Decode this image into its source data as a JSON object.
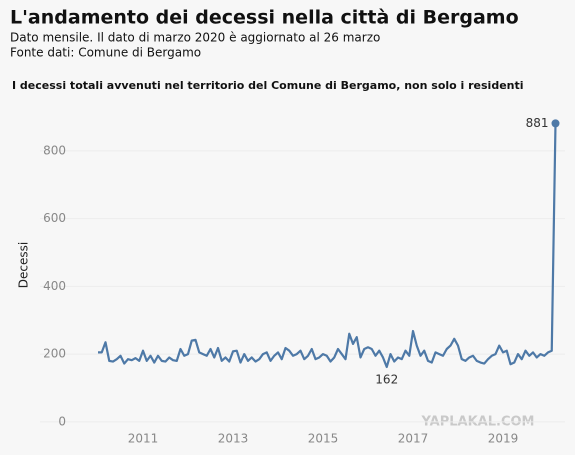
{
  "chart_data": {
    "type": "line",
    "title": "L'andamento dei decessi nella città di Bergamo",
    "subtitle": "Dato mensile. Il dato di marzo 2020 è aggiornato al 26 marzo",
    "source": "Fonte dati: Comune di Bergamo",
    "chart_title": "I decessi totali avvenuti nel territorio del Comune di Bergamo, non solo i residenti",
    "ylabel": "Decessi",
    "watermark": "YAPLAKAL.COM",
    "x": [
      "2010-01",
      "2010-02",
      "2010-03",
      "2010-04",
      "2010-05",
      "2010-06",
      "2010-07",
      "2010-08",
      "2010-09",
      "2010-10",
      "2010-11",
      "2010-12",
      "2011-01",
      "2011-02",
      "2011-03",
      "2011-04",
      "2011-05",
      "2011-06",
      "2011-07",
      "2011-08",
      "2011-09",
      "2011-10",
      "2011-11",
      "2011-12",
      "2012-01",
      "2012-02",
      "2012-03",
      "2012-04",
      "2012-05",
      "2012-06",
      "2012-07",
      "2012-08",
      "2012-09",
      "2012-10",
      "2012-11",
      "2012-12",
      "2013-01",
      "2013-02",
      "2013-03",
      "2013-04",
      "2013-05",
      "2013-06",
      "2013-07",
      "2013-08",
      "2013-09",
      "2013-10",
      "2013-11",
      "2013-12",
      "2014-01",
      "2014-02",
      "2014-03",
      "2014-04",
      "2014-05",
      "2014-06",
      "2014-07",
      "2014-08",
      "2014-09",
      "2014-10",
      "2014-11",
      "2014-12",
      "2015-01",
      "2015-02",
      "2015-03",
      "2015-04",
      "2015-05",
      "2015-06",
      "2015-07",
      "2015-08",
      "2015-09",
      "2015-10",
      "2015-11",
      "2015-12",
      "2016-01",
      "2016-02",
      "2016-03",
      "2016-04",
      "2016-05",
      "2016-06",
      "2016-07",
      "2016-08",
      "2016-09",
      "2016-10",
      "2016-11",
      "2016-12",
      "2017-01",
      "2017-02",
      "2017-03",
      "2017-04",
      "2017-05",
      "2017-06",
      "2017-07",
      "2017-08",
      "2017-09",
      "2017-10",
      "2017-11",
      "2017-12",
      "2018-01",
      "2018-02",
      "2018-03",
      "2018-04",
      "2018-05",
      "2018-06",
      "2018-07",
      "2018-08",
      "2018-09",
      "2018-10",
      "2018-11",
      "2018-12",
      "2019-01",
      "2019-02",
      "2019-03",
      "2019-04",
      "2019-05",
      "2019-06",
      "2019-07",
      "2019-08",
      "2019-09",
      "2019-10",
      "2019-11",
      "2019-12",
      "2020-01",
      "2020-02",
      "2020-03"
    ],
    "series": [
      {
        "name": "Decessi",
        "color": "#4e79a7",
        "values": [
          205,
          205,
          235,
          180,
          178,
          185,
          195,
          172,
          185,
          182,
          188,
          180,
          210,
          180,
          195,
          175,
          195,
          180,
          178,
          190,
          182,
          180,
          215,
          195,
          200,
          240,
          242,
          205,
          200,
          195,
          215,
          190,
          218,
          180,
          190,
          178,
          208,
          210,
          175,
          200,
          180,
          190,
          178,
          185,
          200,
          205,
          180,
          195,
          205,
          185,
          218,
          210,
          195,
          200,
          210,
          185,
          195,
          215,
          185,
          190,
          200,
          195,
          178,
          190,
          215,
          200,
          185,
          260,
          230,
          250,
          190,
          215,
          220,
          215,
          195,
          210,
          190,
          162,
          200,
          178,
          190,
          185,
          210,
          195,
          268,
          225,
          195,
          210,
          180,
          175,
          205,
          200,
          195,
          215,
          225,
          245,
          225,
          185,
          180,
          190,
          195,
          180,
          175,
          172,
          185,
          195,
          200,
          225,
          205,
          210,
          170,
          175,
          200,
          185,
          210,
          195,
          205,
          190,
          200,
          195,
          205,
          210,
          881
        ]
      }
    ],
    "xticks": [
      2011,
      2013,
      2015,
      2017,
      2019
    ],
    "ylim": [
      -30,
      950
    ],
    "yticks": [
      0,
      200,
      400,
      600,
      800
    ],
    "grid": true
  }
}
